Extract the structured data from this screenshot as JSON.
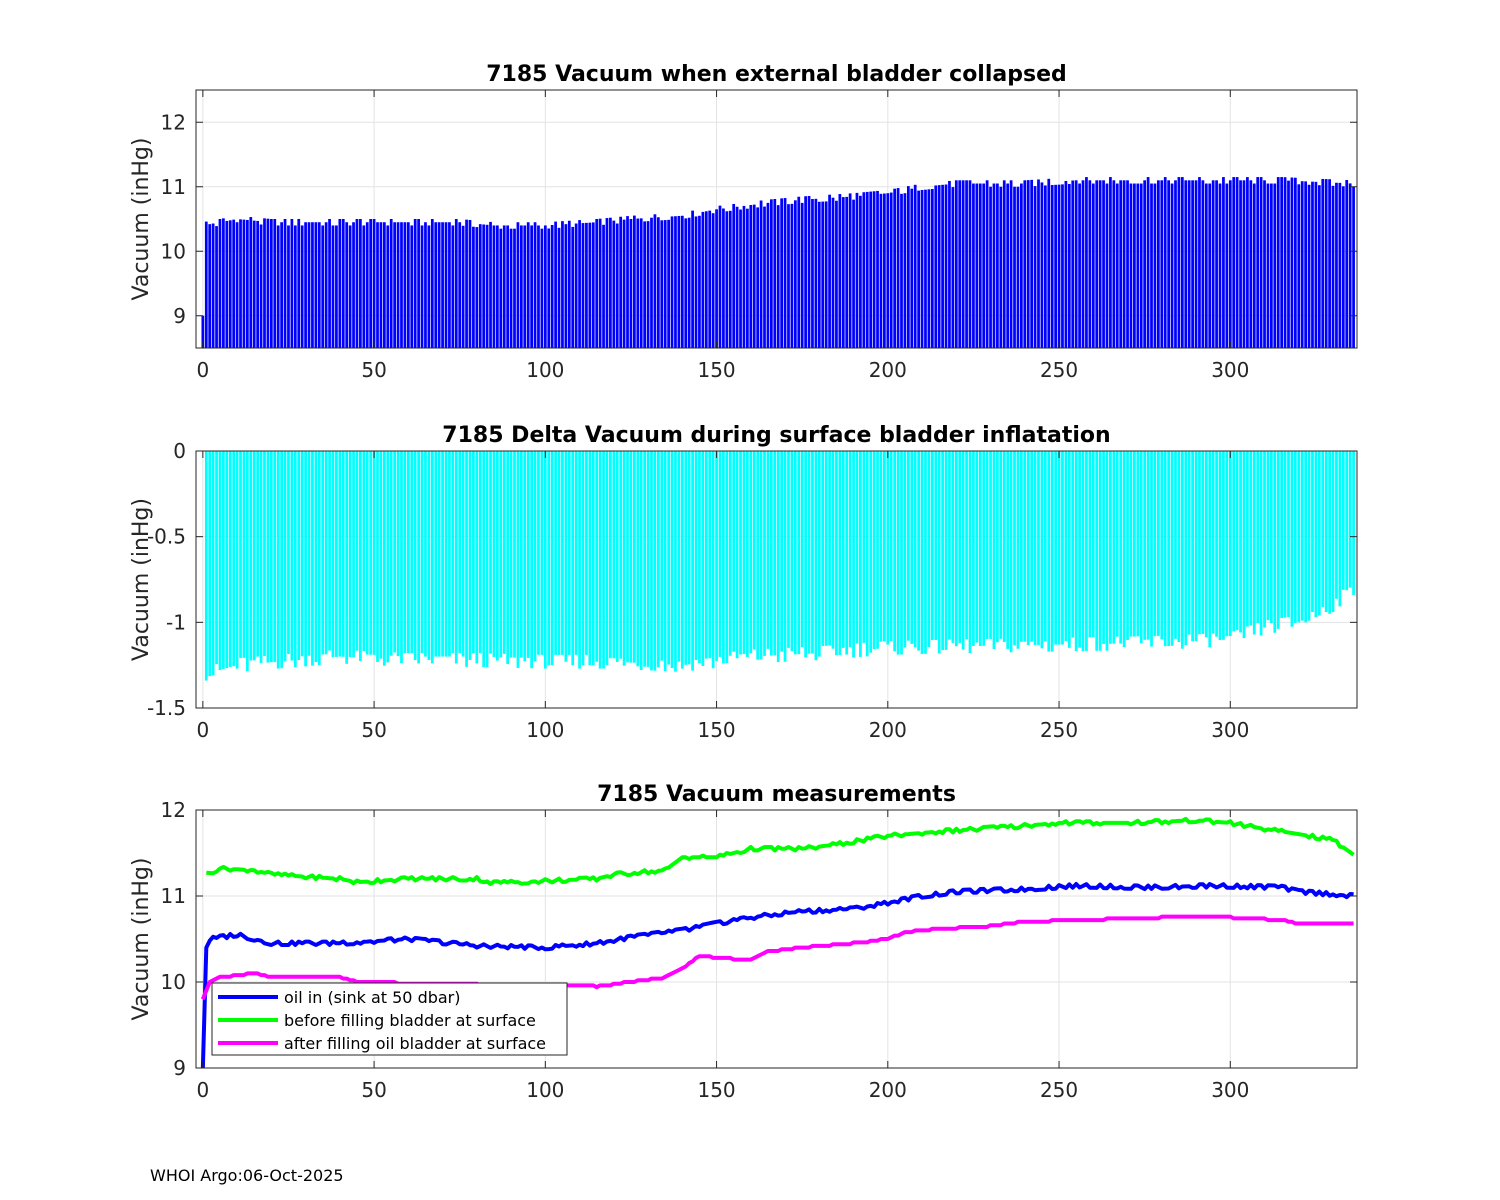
{
  "chart_data": [
    {
      "type": "bar",
      "title": "7185 Vacuum when external bladder collapsed",
      "xlabel": "",
      "ylabel": "Vacuum (inHg)",
      "xlim": [
        -2,
        337
      ],
      "ylim": [
        8.5,
        12.5
      ],
      "xticks": [
        0,
        50,
        100,
        150,
        200,
        250,
        300
      ],
      "yticks": [
        9,
        10,
        11,
        12
      ],
      "grid": true,
      "color": "#0000ff",
      "profiles": {
        "first": 0,
        "last": 336
      },
      "keypoints": [
        [
          0,
          10.4
        ],
        [
          10,
          10.5
        ],
        [
          20,
          10.45
        ],
        [
          40,
          10.45
        ],
        [
          60,
          10.45
        ],
        [
          75,
          10.45
        ],
        [
          85,
          10.4
        ],
        [
          100,
          10.4
        ],
        [
          115,
          10.45
        ],
        [
          125,
          10.5
        ],
        [
          140,
          10.55
        ],
        [
          150,
          10.65
        ],
        [
          165,
          10.75
        ],
        [
          175,
          10.8
        ],
        [
          190,
          10.85
        ],
        [
          200,
          10.9
        ],
        [
          210,
          11.0
        ],
        [
          220,
          11.05
        ],
        [
          240,
          11.05
        ],
        [
          255,
          11.1
        ],
        [
          275,
          11.1
        ],
        [
          295,
          11.1
        ],
        [
          315,
          11.1
        ],
        [
          336,
          11.05
        ]
      ]
    },
    {
      "type": "bar",
      "title": "7185 Delta Vacuum during surface bladder inflatation",
      "xlabel": "",
      "ylabel": "Vacuum (inHg)",
      "xlim": [
        -2,
        337
      ],
      "ylim": [
        -1.5,
        0
      ],
      "xticks": [
        0,
        50,
        100,
        150,
        200,
        250,
        300
      ],
      "yticks": [
        -1.5,
        -1,
        -0.5,
        0
      ],
      "grid": true,
      "color": "#00ffff",
      "profiles": {
        "first": 1,
        "last": 336
      },
      "keypoints": [
        [
          1,
          -1.3
        ],
        [
          10,
          -1.25
        ],
        [
          40,
          -1.2
        ],
        [
          60,
          -1.22
        ],
        [
          80,
          -1.22
        ],
        [
          100,
          -1.23
        ],
        [
          120,
          -1.23
        ],
        [
          140,
          -1.25
        ],
        [
          160,
          -1.2
        ],
        [
          180,
          -1.18
        ],
        [
          200,
          -1.15
        ],
        [
          220,
          -1.14
        ],
        [
          250,
          -1.13
        ],
        [
          280,
          -1.12
        ],
        [
          300,
          -1.1
        ],
        [
          310,
          -1.03
        ],
        [
          320,
          -1.0
        ],
        [
          330,
          -0.9
        ],
        [
          336,
          -0.8
        ]
      ]
    },
    {
      "type": "line",
      "title": "7185 Vacuum measurements",
      "xlabel": "",
      "ylabel": "Vacuum (inHg)",
      "xlim": [
        -2,
        337
      ],
      "ylim": [
        9,
        12
      ],
      "xticks": [
        0,
        50,
        100,
        150,
        200,
        250,
        300
      ],
      "yticks": [
        9,
        10,
        11,
        12
      ],
      "grid": true,
      "legend_position": "bottom-left",
      "series": [
        {
          "name": "oil in (sink at 50 dbar)",
          "color": "#0000ff",
          "keypoints": [
            [
              0,
              9.0
            ],
            [
              1,
              10.4
            ],
            [
              2,
              10.5
            ],
            [
              10,
              10.55
            ],
            [
              20,
              10.45
            ],
            [
              40,
              10.45
            ],
            [
              60,
              10.5
            ],
            [
              80,
              10.42
            ],
            [
              100,
              10.4
            ],
            [
              115,
              10.45
            ],
            [
              125,
              10.52
            ],
            [
              140,
              10.6
            ],
            [
              150,
              10.68
            ],
            [
              165,
              10.78
            ],
            [
              175,
              10.82
            ],
            [
              190,
              10.85
            ],
            [
              200,
              10.92
            ],
            [
              210,
              11.0
            ],
            [
              220,
              11.05
            ],
            [
              240,
              11.08
            ],
            [
              255,
              11.12
            ],
            [
              275,
              11.1
            ],
            [
              295,
              11.12
            ],
            [
              315,
              11.1
            ],
            [
              320,
              11.05
            ],
            [
              336,
              11.0
            ]
          ]
        },
        {
          "name": "before filling bladder at surface",
          "color": "#00ff00",
          "keypoints": [
            [
              1,
              11.25
            ],
            [
              5,
              11.32
            ],
            [
              15,
              11.3
            ],
            [
              20,
              11.25
            ],
            [
              40,
              11.2
            ],
            [
              45,
              11.16
            ],
            [
              60,
              11.2
            ],
            [
              80,
              11.2
            ],
            [
              85,
              11.15
            ],
            [
              115,
              11.2
            ],
            [
              120,
              11.25
            ],
            [
              135,
              11.3
            ],
            [
              140,
              11.45
            ],
            [
              150,
              11.45
            ],
            [
              160,
              11.55
            ],
            [
              175,
              11.55
            ],
            [
              185,
              11.6
            ],
            [
              200,
              11.7
            ],
            [
              215,
              11.75
            ],
            [
              235,
              11.8
            ],
            [
              250,
              11.85
            ],
            [
              270,
              11.85
            ],
            [
              290,
              11.88
            ],
            [
              300,
              11.85
            ],
            [
              310,
              11.78
            ],
            [
              320,
              11.72
            ],
            [
              330,
              11.65
            ],
            [
              336,
              11.48
            ]
          ]
        },
        {
          "name": "after filling oil bladder at surface",
          "color": "#ff00ff",
          "keypoints": [
            [
              0,
              9.8
            ],
            [
              2,
              10.0
            ],
            [
              5,
              10.05
            ],
            [
              15,
              10.1
            ],
            [
              20,
              10.05
            ],
            [
              40,
              10.05
            ],
            [
              45,
              10.0
            ],
            [
              80,
              9.97
            ],
            [
              115,
              9.95
            ],
            [
              125,
              10.0
            ],
            [
              135,
              10.05
            ],
            [
              140,
              10.15
            ],
            [
              145,
              10.3
            ],
            [
              160,
              10.25
            ],
            [
              165,
              10.35
            ],
            [
              175,
              10.4
            ],
            [
              190,
              10.45
            ],
            [
              200,
              10.5
            ],
            [
              205,
              10.58
            ],
            [
              215,
              10.62
            ],
            [
              230,
              10.65
            ],
            [
              240,
              10.7
            ],
            [
              255,
              10.72
            ],
            [
              280,
              10.75
            ],
            [
              300,
              10.75
            ],
            [
              315,
              10.72
            ],
            [
              320,
              10.68
            ],
            [
              336,
              10.68
            ]
          ]
        }
      ]
    }
  ],
  "footer": {
    "label": "WHOI Argo:06-Oct-2025"
  }
}
